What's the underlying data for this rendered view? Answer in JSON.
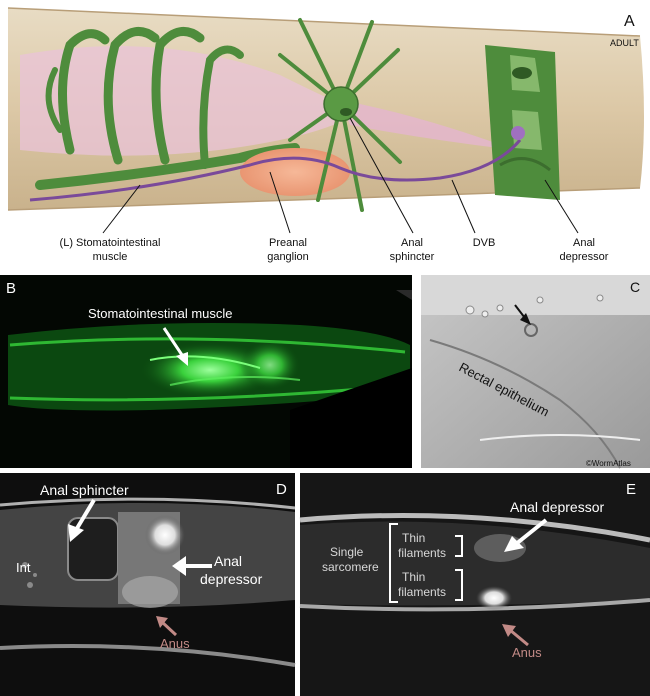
{
  "panel_a": {
    "letter": "A",
    "stage": "ADULT",
    "labels": {
      "stomatointestinal_l1": "(L) Stomatointestinal",
      "stomatointestinal_l2": "muscle",
      "preanal_l1": "Preanal",
      "preanal_l2": "ganglion",
      "anal_sphincter_l1": "Anal",
      "anal_sphincter_l2": "sphincter",
      "dvb": "DVB",
      "anal_depressor_l1": "Anal",
      "anal_depressor_l2": "depressor"
    }
  },
  "panel_b": {
    "letter": "B",
    "label": "Stomatointestinal muscle"
  },
  "panel_c": {
    "letter": "C",
    "label": "Rectal epithelium",
    "credit": "©WormAtlas"
  },
  "panel_d": {
    "letter": "D",
    "anal_sphincter": "Anal sphincter",
    "int": "Int",
    "anal_depressor_l1": "Anal",
    "anal_depressor_l2": "depressor",
    "anus": "Anus"
  },
  "panel_e": {
    "letter": "E",
    "anal_depressor": "Anal depressor",
    "single_l1": "Single",
    "single_l2": "sarcomere",
    "thin1_l1": "Thin",
    "thin1_l2": "filaments",
    "thin2_l1": "Thin",
    "thin2_l2": "filaments",
    "anus": "Anus"
  },
  "colors": {
    "muscle_green": "#4e8c3c",
    "body_tan": "#dcc8a6",
    "ganglion_orange": "#f0a47e",
    "neuron_purple": "#7a4a9a",
    "fluor_green": "#35d040"
  }
}
